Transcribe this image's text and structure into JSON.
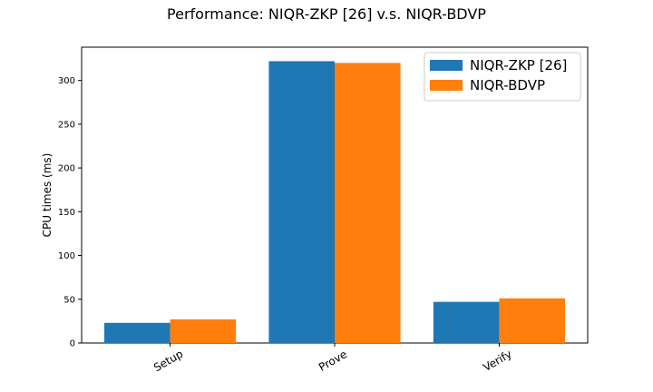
{
  "chart_data": {
    "type": "bar",
    "title": "Performance: NIQR-ZKP [26] v.s. NIQR-BDVP",
    "xlabel": "",
    "ylabel": "CPU times (ms)",
    "categories": [
      "Setup",
      "Prove",
      "Verify"
    ],
    "series": [
      {
        "name": "NIQR-ZKP [26]",
        "color": "#1f77b4",
        "values": [
          23,
          322,
          47
        ]
      },
      {
        "name": "NIQR-BDVP",
        "color": "#ff7f0e",
        "values": [
          27,
          320,
          51
        ]
      }
    ],
    "ylim": [
      0,
      338
    ],
    "yticks": [
      0,
      50,
      100,
      150,
      200,
      250,
      300
    ],
    "grid": false,
    "legend_position": "top-right"
  }
}
